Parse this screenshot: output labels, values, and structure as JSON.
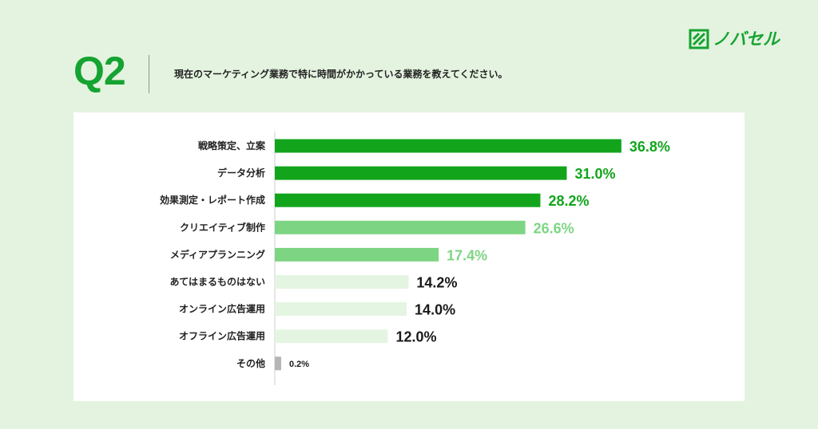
{
  "brand": {
    "name": "ノバセル",
    "color": "#15a331"
  },
  "header": {
    "q_number": "Q2",
    "question": "現在のマーケティング業務で特に時間がかかっている業務を教えてください。"
  },
  "chart_data": {
    "type": "bar",
    "orientation": "horizontal",
    "categories": [
      "戦略策定、立案",
      "データ分析",
      "効果測定・レポート作成",
      "クリエイティブ制作",
      "メディアプランニング",
      "あてはまるものはない",
      "オンライン広告運用",
      "オフライン広告運用",
      "その他"
    ],
    "values": [
      36.8,
      31.0,
      28.2,
      26.6,
      17.4,
      14.2,
      14.0,
      12.0,
      0.2
    ],
    "value_labels": [
      "36.8%",
      "31.0%",
      "28.2%",
      "26.6%",
      "17.4%",
      "14.2%",
      "14.0%",
      "12.0%",
      "0.2%"
    ],
    "bar_colors": [
      "#12a51c",
      "#12a51c",
      "#12a51c",
      "#7dd583",
      "#7dd583",
      "#e4f5e2",
      "#e4f5e2",
      "#e4f5e2",
      "#b5b5b5"
    ],
    "label_colors": [
      "#12a51c",
      "#12a51c",
      "#12a51c",
      "#7dd583",
      "#7dd583",
      "#1a1a1a",
      "#1a1a1a",
      "#1a1a1a",
      "#1a1a1a"
    ],
    "xlim": [
      0,
      40
    ],
    "grid": false,
    "legend": "none"
  }
}
